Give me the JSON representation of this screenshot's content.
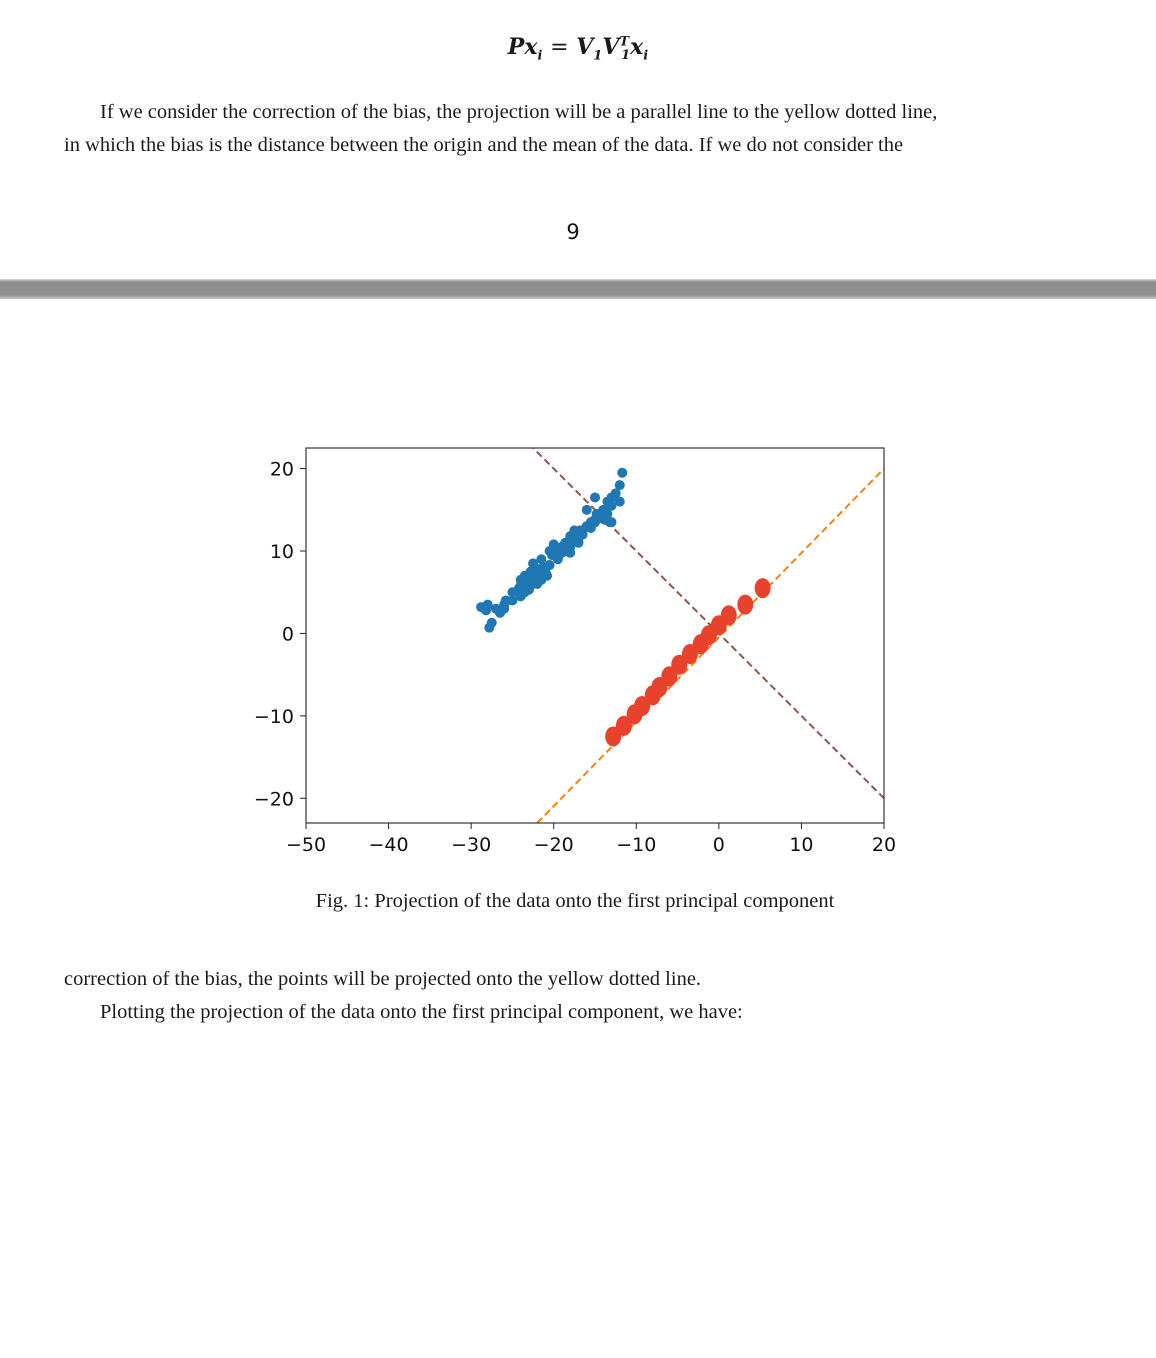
{
  "page1": {
    "formula": {
      "lhs_P": "P",
      "lhs_x": "x",
      "lhs_i": "i",
      "eq": "=",
      "V1": "V",
      "sub1": "1",
      "V1T": "V",
      "sup_T": "T",
      "sub1b": "1",
      "rhs_x": "x",
      "rhs_i": "i"
    },
    "paragraph_line1": "If we consider the correction of the bias, the projection will be a parallel line to the yellow dotted line,",
    "paragraph_line2": "in which the bias is the distance between the origin and the mean of the data. If we do not consider the",
    "page_number": "9"
  },
  "page2": {
    "caption": "Fig. 1: Projection of the data onto the first principal component",
    "paragraph_line1": "correction of the bias, the points will be projected onto the yellow dotted line.",
    "paragraph_line2": "Plotting the projection of the data onto the first principal component, we have:"
  },
  "chart_data": {
    "type": "scatter",
    "xlim": [
      -50,
      20
    ],
    "ylim": [
      -23,
      22.5
    ],
    "xticks": [
      "−50",
      "−40",
      "−30",
      "−20",
      "−10",
      "0",
      "10",
      "20"
    ],
    "xtick_values": [
      -50,
      -40,
      -30,
      -20,
      -10,
      0,
      10,
      20
    ],
    "yticks": [
      "20",
      "10",
      "0",
      "−10",
      "−20"
    ],
    "ytick_values": [
      20,
      10,
      0,
      -10,
      -20
    ],
    "colors": {
      "data": "#1f77b4",
      "projection": "#e8412c",
      "pc_line": "#ff7f0e",
      "orth_line": "#8c564b"
    },
    "lines": [
      {
        "style": "dashed",
        "color": "#ff7f0e",
        "x": [
          -22,
          20
        ],
        "y": [
          -23,
          20
        ]
      },
      {
        "style": "dashed",
        "color": "#8c564b",
        "x": [
          -23,
          20
        ],
        "y": [
          23,
          -20
        ]
      }
    ],
    "series": [
      {
        "marker": "dot",
        "color": "#1f77b4",
        "x": [
          -28.8,
          -28.2,
          -27.5,
          -27.8,
          -28.0,
          -26.5,
          -26.0,
          -25.8,
          -25.0,
          -24.2,
          -24.0,
          -23.5,
          -23.0,
          -22.8,
          -22.3,
          -21.8,
          -21.2,
          -21.0,
          -20.5,
          -23.0,
          -22.0,
          -21.5,
          -20.8,
          -20.2,
          -19.5,
          -19.0,
          -18.5,
          -18.0,
          -17.5,
          -17.0,
          -16.8,
          -16.5,
          -16.0,
          -15.5,
          -15.0,
          -14.8,
          -14.3,
          -14.0,
          -13.5,
          -13.2,
          -13.0,
          -12.5,
          -12.0,
          -11.7,
          -13.5,
          -13.8,
          -15.0,
          -15.5,
          -16.5,
          -17.0,
          -18.0,
          -18.5,
          -19.0,
          -19.5,
          -20.0,
          -21.0,
          -22.0,
          -22.5,
          -23.5,
          -24.0,
          -25.0,
          -26.0,
          -27.0,
          -15.0,
          -16.0,
          -17.5,
          -18.0,
          -18.6,
          -19.8,
          -20.5,
          -21.5,
          -22.5,
          -23.0,
          -23.5,
          -17.0,
          -16.0,
          -14.5,
          -13.0,
          -12.0,
          -13.0,
          -24.0,
          -22.0,
          -20.0,
          -18.0
        ],
        "y": [
          3.2,
          2.8,
          1.3,
          0.7,
          3.5,
          2.5,
          3.0,
          4.0,
          5.0,
          5.5,
          6.5,
          7.0,
          6.8,
          7.5,
          7.0,
          7.8,
          8.0,
          7.5,
          8.3,
          5.3,
          6.0,
          6.5,
          7.0,
          9.5,
          10.0,
          10.5,
          10.8,
          11.2,
          11.5,
          12.0,
          12.5,
          12.5,
          13.0,
          13.5,
          13.8,
          14.5,
          14.0,
          15.0,
          14.5,
          13.5,
          16.5,
          17.0,
          18.0,
          19.5,
          16.0,
          13.8,
          13.5,
          12.8,
          12.0,
          11.0,
          10.5,
          10.0,
          9.8,
          9.0,
          9.5,
          8.0,
          7.0,
          6.0,
          5.0,
          4.5,
          4.0,
          3.5,
          3.0,
          16.5,
          15.0,
          12.5,
          11.8,
          11.0,
          10.5,
          10.0,
          9.0,
          8.5,
          6.8,
          6.0,
          11.5,
          13.0,
          14.0,
          15.5,
          16.0,
          13.5,
          5.8,
          7.8,
          10.8,
          9.8
        ]
      },
      {
        "marker": "large-dot",
        "color": "#e8412c",
        "x": [
          -12.8,
          -11.5,
          -10.2,
          -9.3,
          -8.0,
          -7.2,
          -6.0,
          -4.8,
          -3.5,
          -2.2,
          -1.2,
          0.0,
          1.2,
          3.2,
          5.3
        ],
        "y": [
          -12.5,
          -11.2,
          -9.8,
          -8.8,
          -7.5,
          -6.5,
          -5.2,
          -3.8,
          -2.5,
          -1.3,
          -0.2,
          1.0,
          2.2,
          3.5,
          5.5
        ]
      }
    ]
  }
}
